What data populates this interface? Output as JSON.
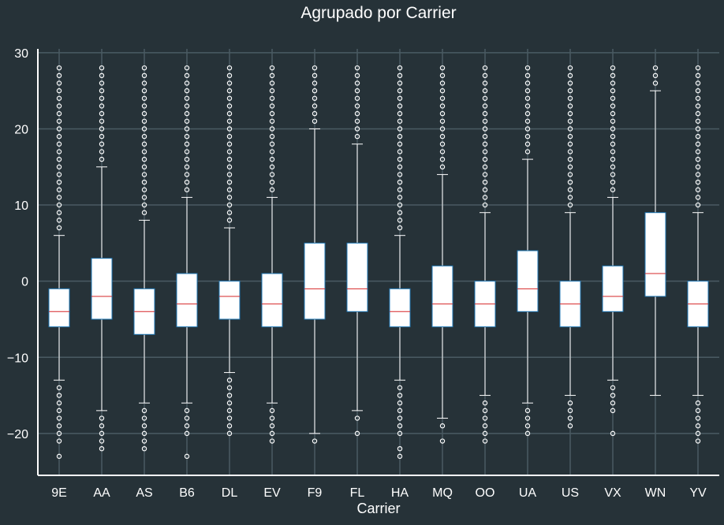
{
  "colors": {
    "background": "#263238",
    "grid": "#4a5b63",
    "axis": "#ffffff",
    "text": "#ffffff",
    "box_fill": "#ffffff",
    "box_edge": "#1f77b4",
    "median": "#d62728",
    "whisker": "#ffffff",
    "flier_edge": "#ffffff"
  },
  "chart_data": {
    "type": "box",
    "title": "Agrupado por Carrier",
    "xlabel": "Carrier",
    "ylabel": "",
    "ylim": [
      -25.5,
      30.5
    ],
    "yticks": [
      -20,
      -10,
      0,
      10,
      20,
      30
    ],
    "ytick_labels": [
      "−20",
      "−10",
      "0",
      "10",
      "20",
      "30"
    ],
    "grid": true,
    "categories": [
      "9E",
      "AA",
      "AS",
      "B6",
      "DL",
      "EV",
      "F9",
      "FL",
      "HA",
      "MQ",
      "OO",
      "UA",
      "US",
      "VX",
      "WN",
      "YV"
    ],
    "boxes": [
      {
        "carrier": "9E",
        "whislo": -13,
        "q1": -6,
        "med": -4,
        "q3": -1,
        "whishi": 6,
        "fliers_high_from": 7,
        "fliers_low": [
          -14,
          -15,
          -16,
          -17,
          -18,
          -19,
          -20,
          -21,
          -23
        ]
      },
      {
        "carrier": "AA",
        "whislo": -17,
        "q1": -5,
        "med": -2,
        "q3": 3,
        "whishi": 15,
        "fliers_high_from": 16,
        "fliers_low": [
          -18,
          -19,
          -20,
          -21,
          -22
        ]
      },
      {
        "carrier": "AS",
        "whislo": -16,
        "q1": -7,
        "med": -4,
        "q3": -1,
        "whishi": 8,
        "fliers_high_from": 9,
        "fliers_low": [
          -17,
          -18,
          -19,
          -20,
          -21,
          -22
        ]
      },
      {
        "carrier": "B6",
        "whislo": -16,
        "q1": -6,
        "med": -3,
        "q3": 1,
        "whishi": 11,
        "fliers_high_from": 12,
        "fliers_low": [
          -17,
          -18,
          -19,
          -20,
          -23
        ]
      },
      {
        "carrier": "DL",
        "whislo": -12,
        "q1": -5,
        "med": -2,
        "q3": 0,
        "whishi": 7,
        "fliers_high_from": 8,
        "fliers_low": [
          -13,
          -14,
          -15,
          -16,
          -17,
          -18,
          -19,
          -20
        ]
      },
      {
        "carrier": "EV",
        "whislo": -16,
        "q1": -6,
        "med": -3,
        "q3": 1,
        "whishi": 11,
        "fliers_high_from": 12,
        "fliers_low": [
          -17,
          -18,
          -19,
          -20,
          -21
        ]
      },
      {
        "carrier": "F9",
        "whislo": -20,
        "q1": -5,
        "med": -1,
        "q3": 5,
        "whishi": 20,
        "fliers_high_from": 21,
        "fliers_low": [
          -21
        ]
      },
      {
        "carrier": "FL",
        "whislo": -17,
        "q1": -4,
        "med": -1,
        "q3": 5,
        "whishi": 18,
        "fliers_high_from": 19,
        "fliers_low": [
          -18,
          -20
        ]
      },
      {
        "carrier": "HA",
        "whislo": -13,
        "q1": -6,
        "med": -4,
        "q3": -1,
        "whishi": 6,
        "fliers_high_from": 7,
        "fliers_low": [
          -14,
          -15,
          -16,
          -17,
          -18,
          -19,
          -20,
          -22,
          -23
        ]
      },
      {
        "carrier": "MQ",
        "whislo": -18,
        "q1": -6,
        "med": -3,
        "q3": 2,
        "whishi": 14,
        "fliers_high_from": 15,
        "fliers_low": [
          -19,
          -21
        ]
      },
      {
        "carrier": "OO",
        "whislo": -15,
        "q1": -6,
        "med": -3,
        "q3": 0,
        "whishi": 9,
        "fliers_high_from": 10,
        "fliers_low": [
          -16,
          -17,
          -18,
          -19,
          -20,
          -21
        ]
      },
      {
        "carrier": "UA",
        "whislo": -16,
        "q1": -4,
        "med": -1,
        "q3": 4,
        "whishi": 16,
        "fliers_high_from": 17,
        "fliers_low": [
          -17,
          -18,
          -19,
          -20
        ]
      },
      {
        "carrier": "US",
        "whislo": -15,
        "q1": -6,
        "med": -3,
        "q3": 0,
        "whishi": 9,
        "fliers_high_from": 10,
        "fliers_low": [
          -16,
          -17,
          -18,
          -19
        ]
      },
      {
        "carrier": "VX",
        "whislo": -13,
        "q1": -4,
        "med": -2,
        "q3": 2,
        "whishi": 11,
        "fliers_high_from": 12,
        "fliers_low": [
          -14,
          -15,
          -16,
          -17,
          -20
        ]
      },
      {
        "carrier": "WN",
        "whislo": -15,
        "q1": -2,
        "med": 1,
        "q3": 9,
        "whishi": 25,
        "fliers_high_from": 26,
        "fliers_low": []
      },
      {
        "carrier": "YV",
        "whislo": -15,
        "q1": -6,
        "med": -3,
        "q3": 0,
        "whishi": 9,
        "fliers_high_from": 10,
        "fliers_low": [
          -16,
          -17,
          -18,
          -19,
          -20,
          -21
        ]
      }
    ],
    "fliers_high_to": 28
  }
}
